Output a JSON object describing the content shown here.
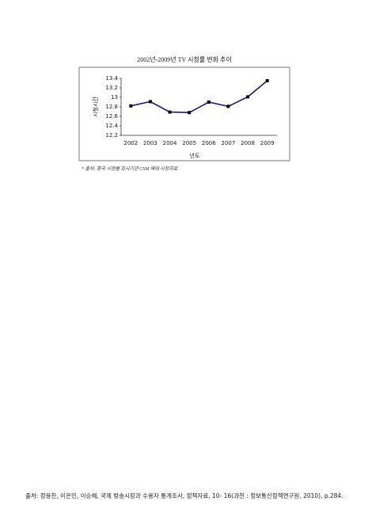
{
  "chart_data": {
    "type": "line",
    "title": "2002년-2009년 TV 시청률 변화 추이",
    "x_label": "년도",
    "y_label": "시청시간",
    "categories": [
      "2002",
      "2003",
      "2004",
      "2005",
      "2006",
      "2007",
      "2008",
      "2009"
    ],
    "values": [
      12.82,
      12.91,
      12.69,
      12.68,
      12.9,
      12.81,
      13.01,
      13.35
    ],
    "color": "#1c1c70",
    "ylim": [
      12.2,
      13.4
    ],
    "yticks": [
      12.2,
      12.4,
      12.6,
      12.8,
      13,
      13.2,
      13.4
    ],
    "grid": false
  },
  "note": "* 출처: 중국 시청률 조사기관 CSM 역대 시청자료",
  "source": "출처: 정용찬, 이은민, 이승혜, 국제 방송시장과 수용자 통계조사, 정책자료, 10- 16(과천 : 정보통신정책연구원, 2010), p.284."
}
